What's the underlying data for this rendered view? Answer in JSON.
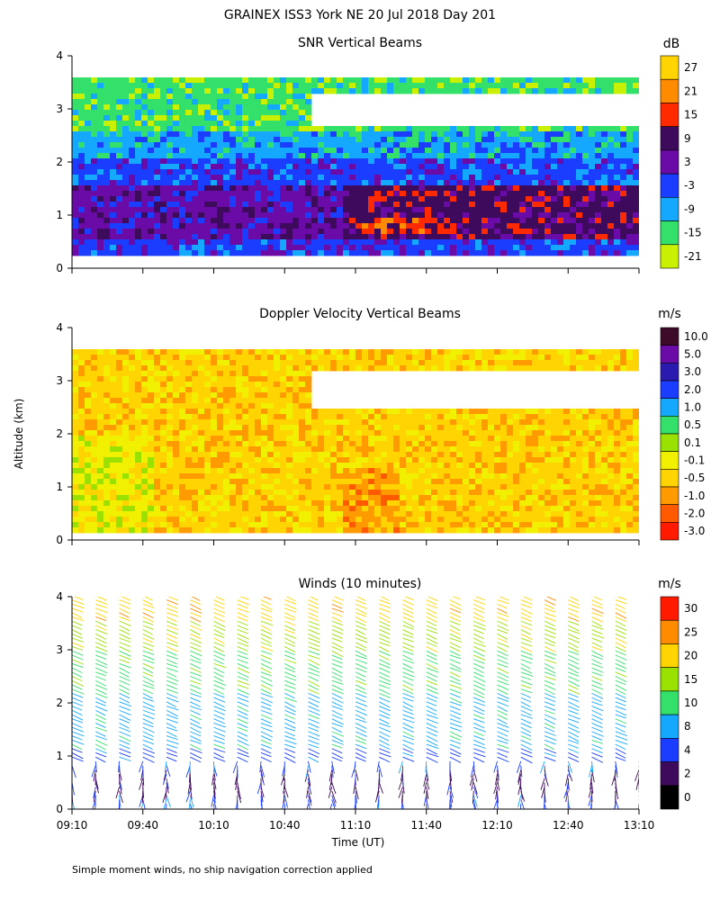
{
  "chart_data": {
    "type": "heatmap",
    "title": "GRAINEX ISS3 York NE  20 Jul 2018 Day 201",
    "ylabel": "Altitude (km)",
    "xlabel": "Time (UT)",
    "footnote": "Simple moment winds, no ship navigation correction applied",
    "x_ticks": [
      "09:10",
      "09:40",
      "10:10",
      "10:40",
      "11:10",
      "11:40",
      "12:10",
      "12:40",
      "13:10"
    ],
    "xlim": [
      "09:10",
      "13:10"
    ],
    "ylim": [
      0,
      4
    ],
    "y_ticks": [
      "0",
      "1",
      "2",
      "3",
      "4"
    ],
    "panels": [
      {
        "title": "SNR Vertical Beams",
        "unit": "dB",
        "colorbar": {
          "labels": [
            "27",
            "21",
            "15",
            "9",
            "3",
            "-3",
            "-9",
            "-15",
            "-21"
          ],
          "colors": [
            "#ffd400",
            "#ff8c00",
            "#ff2a00",
            "#3d0a5c",
            "#6a0ba8",
            "#1a3dff",
            "#14a8ff",
            "#33e06a",
            "#c8f000"
          ]
        },
        "coverage_top_km": 3.6,
        "features": [
          {
            "label": "high SNR (15 dB) near 1 km",
            "time_range": [
              "11:10",
              "12:50"
            ],
            "altitude_range": [
              0.5,
              1.2
            ]
          }
        ]
      },
      {
        "title": "Doppler Velocity Vertical Beams",
        "unit": "m/s",
        "colorbar": {
          "labels": [
            "10.0",
            "5.0",
            "3.0",
            "2.0",
            "1.0",
            "0.5",
            "0.1",
            "-0.1",
            "-0.5",
            "-1.0",
            "-2.0",
            "-3.0"
          ],
          "colors": [
            "#3d0a2a",
            "#6a0ba8",
            "#2a1ab0",
            "#1a3dff",
            "#14a8ff",
            "#33e06a",
            "#9ae000",
            "#f0f000",
            "#ffd400",
            "#ff9a00",
            "#ff5a00",
            "#ff1a00"
          ]
        },
        "features": [
          {
            "label": "downward motion (-1 to -2 m/s)",
            "time_range": [
              "11:00",
              "11:25"
            ],
            "altitude_range": [
              0.1,
              1.4
            ]
          }
        ]
      },
      {
        "title": "Winds (10 minutes)",
        "unit": "m/s",
        "colorbar": {
          "labels": [
            "30",
            "25",
            "20",
            "15",
            "10",
            "8",
            "4",
            "2",
            "0"
          ],
          "colors": [
            "#ff1a00",
            "#ff8c00",
            "#ffd400",
            "#9ae000",
            "#33e06a",
            "#14a8ff",
            "#1a3dff",
            "#3d0a5c",
            "#000000"
          ]
        },
        "profiles_every_minutes": 10
      }
    ]
  }
}
